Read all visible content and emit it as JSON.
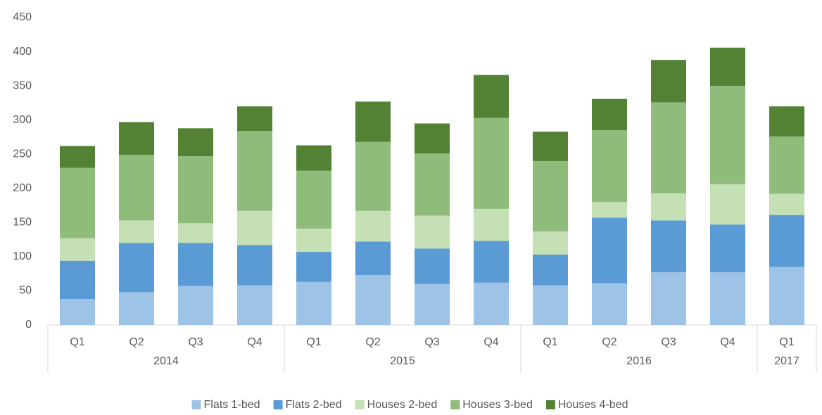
{
  "chart_data": {
    "type": "stacked-bar",
    "groups": [
      {
        "label": "2014",
        "categories": [
          "Q1",
          "Q2",
          "Q3",
          "Q4"
        ]
      },
      {
        "label": "2015",
        "categories": [
          "Q1",
          "Q2",
          "Q3",
          "Q4"
        ]
      },
      {
        "label": "2016",
        "categories": [
          "Q1",
          "Q2",
          "Q3",
          "Q4"
        ]
      },
      {
        "label": "2017",
        "categories": [
          "Q1"
        ]
      }
    ],
    "series": [
      {
        "name": "Flats 1-bed",
        "color": "#9dc3e6",
        "values": [
          38,
          48,
          57,
          58,
          63,
          73,
          60,
          62,
          58,
          61,
          77,
          77,
          85
        ]
      },
      {
        "name": "Flats 2-bed",
        "color": "#5b9bd5",
        "values": [
          56,
          72,
          63,
          59,
          44,
          49,
          52,
          61,
          45,
          96,
          76,
          70,
          76
        ]
      },
      {
        "name": "Houses 2-bed",
        "color": "#c5e0b4",
        "values": [
          33,
          33,
          29,
          50,
          34,
          45,
          48,
          47,
          34,
          23,
          40,
          59,
          31
        ]
      },
      {
        "name": "Houses 3-bed",
        "color": "#8fbc7b",
        "values": [
          103,
          96,
          98,
          117,
          85,
          101,
          91,
          133,
          103,
          105,
          133,
          144,
          84
        ]
      },
      {
        "name": "Houses 4-bed",
        "color": "#548235",
        "values": [
          32,
          48,
          41,
          36,
          37,
          59,
          44,
          63,
          43,
          46,
          62,
          56,
          44
        ]
      }
    ],
    "ylim": [
      0,
      450
    ],
    "yticks": [
      0,
      50,
      100,
      150,
      200,
      250,
      300,
      350,
      400,
      450
    ],
    "legend": "bottom"
  }
}
